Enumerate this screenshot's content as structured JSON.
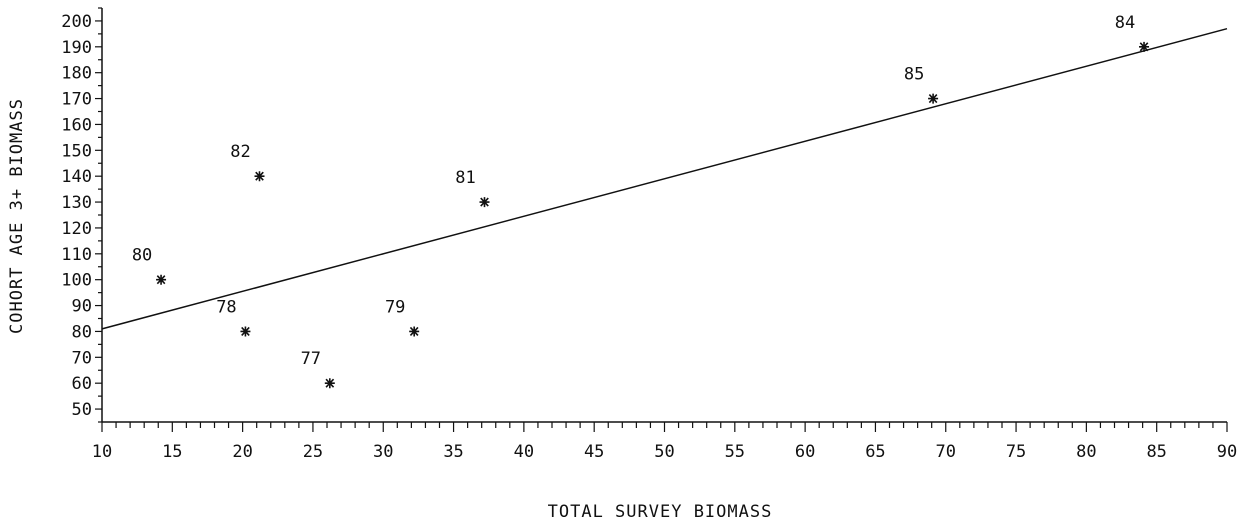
{
  "chart_data": {
    "type": "scatter",
    "title": "",
    "xlabel": "TOTAL SURVEY BIOMASS",
    "ylabel": "COHORT AGE 3+ BIOMASS",
    "xlim": [
      10,
      90
    ],
    "ylim": [
      45,
      205
    ],
    "x_ticks": [
      10,
      15,
      20,
      25,
      30,
      35,
      40,
      45,
      50,
      55,
      60,
      65,
      70,
      75,
      80,
      85,
      90
    ],
    "y_ticks": [
      50,
      60,
      70,
      80,
      90,
      100,
      110,
      120,
      130,
      140,
      150,
      160,
      170,
      180,
      190,
      200
    ],
    "grid": false,
    "legend": "none",
    "marker": "asterisk",
    "series": [
      {
        "points": [
          {
            "label": "77",
            "x": 26.2,
            "y": 60
          },
          {
            "label": "78",
            "x": 20.2,
            "y": 80
          },
          {
            "label": "79",
            "x": 32.2,
            "y": 80
          },
          {
            "label": "80",
            "x": 14.2,
            "y": 100
          },
          {
            "label": "81",
            "x": 37.2,
            "y": 130
          },
          {
            "label": "82",
            "x": 21.2,
            "y": 140
          },
          {
            "label": "84",
            "x": 84.1,
            "y": 190
          },
          {
            "label": "85",
            "x": 69.1,
            "y": 170
          }
        ]
      }
    ],
    "fit_line": {
      "x": [
        10,
        90
      ],
      "y": [
        81,
        197
      ]
    }
  }
}
